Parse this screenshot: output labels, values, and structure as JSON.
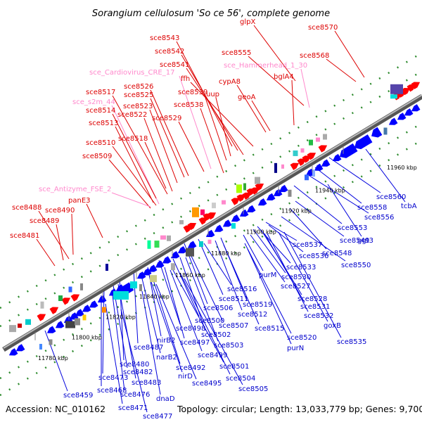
{
  "title": "Sorangium cellulosum 'So ce 56', complete genome",
  "footer": {
    "accession": "Accession: NC_010162",
    "stats": "Topology: circular; Length: 13,033,779 bp; Genes: 9,700"
  },
  "colors": {
    "forward": "#ff0000",
    "reverse": "#0000ff",
    "rna": "#ff88cc",
    "backbone": "#888888",
    "dots": "#2e8b2e"
  },
  "ticks": [
    "11780 kbp",
    "11800 kbp",
    "11820 kbp",
    "11840 kbp",
    "11860 kbp",
    "11880 kbp",
    "11900 kbp",
    "11920 kbp",
    "11940 kbp",
    "11960 kbp"
  ],
  "top_labels": [
    {
      "text": "sce8570",
      "color": "red"
    },
    {
      "text": "sce8568",
      "color": "red"
    },
    {
      "text": "glpX",
      "color": "red"
    },
    {
      "text": "sce8555",
      "color": "red"
    },
    {
      "text": "sce_Hammerhead_1_30",
      "color": "pink"
    },
    {
      "text": "bglA4",
      "color": "red"
    },
    {
      "text": "sce8543",
      "color": "red"
    },
    {
      "text": "sce8542",
      "color": "red"
    },
    {
      "text": "sce8541",
      "color": "red"
    },
    {
      "text": "sce_Cardiovirus_CRE_17",
      "color": "pink"
    },
    {
      "text": "ffh",
      "color": "red"
    },
    {
      "text": "cypA8",
      "color": "red"
    },
    {
      "text": "uup",
      "color": "red"
    },
    {
      "text": "geoA",
      "color": "red"
    },
    {
      "text": "sce8526",
      "color": "red"
    },
    {
      "text": "sce8539",
      "color": "red"
    },
    {
      "text": "sce8525",
      "color": "red"
    },
    {
      "text": "sce8538",
      "color": "red"
    },
    {
      "text": "sce8517",
      "color": "red"
    },
    {
      "text": "sce_s2m_44",
      "color": "pink"
    },
    {
      "text": "sce8523",
      "color": "red"
    },
    {
      "text": "sce8514",
      "color": "red"
    },
    {
      "text": "sce8522",
      "color": "red"
    },
    {
      "text": "sce8529",
      "color": "red"
    },
    {
      "text": "sce8513",
      "color": "red"
    },
    {
      "text": "sce8518",
      "color": "red"
    },
    {
      "text": "sce8510",
      "color": "red"
    },
    {
      "text": "sce8509",
      "color": "red"
    },
    {
      "text": "sce_Antizyme_FSE_2",
      "color": "pink"
    },
    {
      "text": "panE3",
      "color": "red"
    },
    {
      "text": "sce8488",
      "color": "red"
    },
    {
      "text": "sce8490",
      "color": "red"
    },
    {
      "text": "sce8489",
      "color": "red"
    },
    {
      "text": "sce8481",
      "color": "red"
    }
  ],
  "bottom_labels": [
    {
      "text": "sce8560"
    },
    {
      "text": "tcbA"
    },
    {
      "text": "sce8558"
    },
    {
      "text": "sce8556"
    },
    {
      "text": "sce8553"
    },
    {
      "text": "sce8549"
    },
    {
      "text": "ggt3"
    },
    {
      "text": "sce8548"
    },
    {
      "text": "sce8537"
    },
    {
      "text": "sce8536"
    },
    {
      "text": "sce8550"
    },
    {
      "text": "sce8533"
    },
    {
      "text": "purM"
    },
    {
      "text": "sce8530"
    },
    {
      "text": "sce8527"
    },
    {
      "text": "sce8528"
    },
    {
      "text": "sce8531"
    },
    {
      "text": "sce8532"
    },
    {
      "text": "goxB"
    },
    {
      "text": "sce8535"
    },
    {
      "text": "sce8516"
    },
    {
      "text": "sce8511"
    },
    {
      "text": "sce8519"
    },
    {
      "text": "sce8512"
    },
    {
      "text": "sce8506"
    },
    {
      "text": "sce8515"
    },
    {
      "text": "sce8520"
    },
    {
      "text": "sce8507"
    },
    {
      "text": "purN"
    },
    {
      "text": "sce8500"
    },
    {
      "text": "sce8502"
    },
    {
      "text": "sce8498"
    },
    {
      "text": "sce8503"
    },
    {
      "text": "sce8497"
    },
    {
      "text": "nirB2"
    },
    {
      "text": "sce8499"
    },
    {
      "text": "sce8487"
    },
    {
      "text": "narB2"
    },
    {
      "text": "sce8501"
    },
    {
      "text": "sce8480"
    },
    {
      "text": "sce8492"
    },
    {
      "text": "sce8482"
    },
    {
      "text": "sce8504"
    },
    {
      "text": "nirD"
    },
    {
      "text": "sce8473"
    },
    {
      "text": "sce8483"
    },
    {
      "text": "sce8495"
    },
    {
      "text": "sce8505"
    },
    {
      "text": "sce8468"
    },
    {
      "text": "sce8476"
    },
    {
      "text": "dnaD"
    },
    {
      "text": "sce8459"
    },
    {
      "text": "sce8471"
    },
    {
      "text": "sce8477"
    }
  ]
}
